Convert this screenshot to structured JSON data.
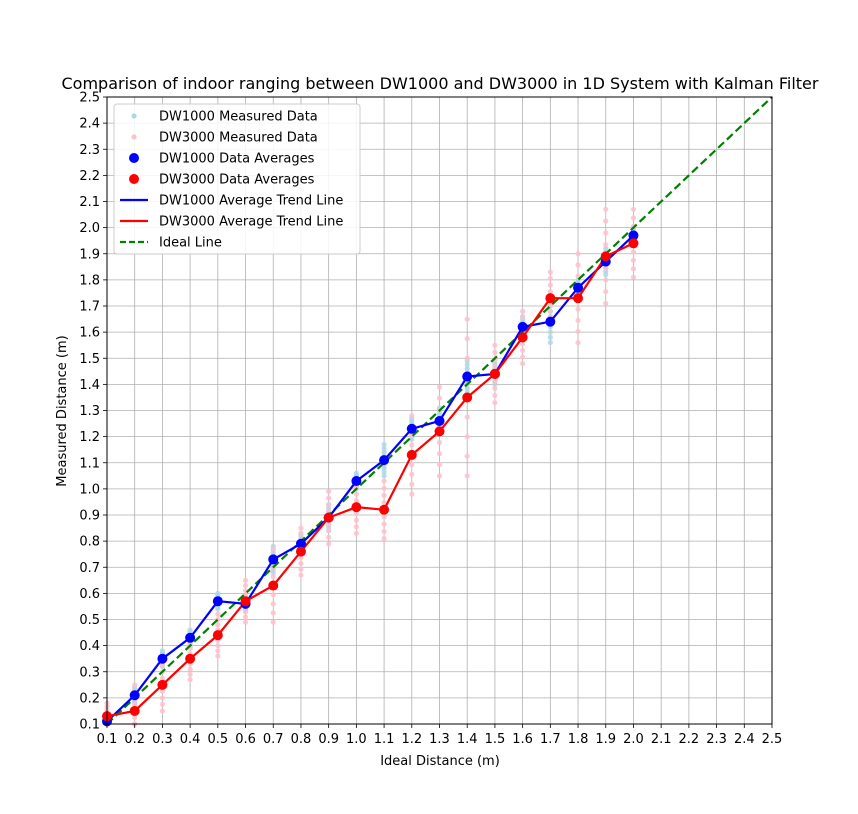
{
  "chart_data": {
    "type": "line",
    "title": "Comparison of indoor ranging between DW1000 and DW3000 in 1D System with Kalman Filter",
    "xlabel": "Ideal Distance (m)",
    "ylabel": "Measured Distance (m)",
    "xlim": [
      0.1,
      2.5
    ],
    "ylim": [
      0.1,
      2.5
    ],
    "x_ticks": [
      "0.1",
      "0.2",
      "0.3",
      "0.4",
      "0.5",
      "0.6",
      "0.7",
      "0.8",
      "0.9",
      "1.0",
      "1.1",
      "1.2",
      "1.3",
      "1.4",
      "1.5",
      "1.6",
      "1.7",
      "1.8",
      "1.9",
      "2.0",
      "2.1",
      "2.2",
      "2.3",
      "2.4",
      "2.5"
    ],
    "y_ticks": [
      "0.1",
      "0.2",
      "0.3",
      "0.4",
      "0.5",
      "0.6",
      "0.7",
      "0.8",
      "0.9",
      "1.0",
      "1.1",
      "1.2",
      "1.3",
      "1.4",
      "1.5",
      "1.6",
      "1.7",
      "1.8",
      "1.9",
      "2.0",
      "2.1",
      "2.2",
      "2.3",
      "2.4",
      "2.5"
    ],
    "grid": true,
    "legend_position": "top-left",
    "x": [
      0.1,
      0.2,
      0.3,
      0.4,
      0.5,
      0.6,
      0.7,
      0.8,
      0.9,
      1.0,
      1.1,
      1.2,
      1.3,
      1.4,
      1.5,
      1.6,
      1.7,
      1.8,
      1.9,
      2.0
    ],
    "series": [
      {
        "name": "DW1000 Measured Data",
        "kind": "scatter",
        "color": "#add8e6",
        "spread": [
          0.02,
          0.03,
          0.03,
          0.03,
          0.03,
          0.03,
          0.05,
          0.04,
          0.05,
          0.03,
          0.06,
          0.04,
          0.05,
          0.06,
          0.04,
          0.04,
          0.08,
          0.03,
          0.05,
          0.03
        ]
      },
      {
        "name": "DW3000 Measured Data",
        "kind": "scatter",
        "color": "#ffc0cb",
        "spread": [
          0.05,
          0.1,
          0.1,
          0.08,
          0.08,
          0.08,
          0.14,
          0.09,
          0.1,
          0.1,
          0.11,
          0.15,
          0.17,
          0.3,
          0.11,
          0.1,
          0.1,
          0.17,
          0.18,
          0.13
        ]
      },
      {
        "name": "DW1000 Data Averages",
        "kind": "points",
        "color": "#0000ff",
        "values": [
          0.11,
          0.21,
          0.35,
          0.43,
          0.57,
          0.56,
          0.73,
          0.79,
          0.89,
          1.03,
          1.11,
          1.23,
          1.26,
          1.43,
          1.44,
          1.62,
          1.64,
          1.77,
          1.87,
          1.97
        ]
      },
      {
        "name": "DW3000 Data Averages",
        "kind": "points",
        "color": "#ff0000",
        "values": [
          0.13,
          0.15,
          0.25,
          0.35,
          0.44,
          0.57,
          0.63,
          0.76,
          0.89,
          0.93,
          0.92,
          1.13,
          1.22,
          1.35,
          1.44,
          1.58,
          1.73,
          1.73,
          1.89,
          1.94
        ]
      },
      {
        "name": "DW1000 Average Trend Line",
        "kind": "line",
        "color": "#0000ff",
        "ref": "DW1000 Data Averages"
      },
      {
        "name": "DW3000 Average Trend Line",
        "kind": "line",
        "color": "#ff0000",
        "ref": "DW3000 Data Averages"
      },
      {
        "name": "Ideal Line",
        "kind": "dashed",
        "color": "#008000",
        "from": [
          0.1,
          0.1
        ],
        "to": [
          2.5,
          2.5
        ]
      }
    ]
  }
}
